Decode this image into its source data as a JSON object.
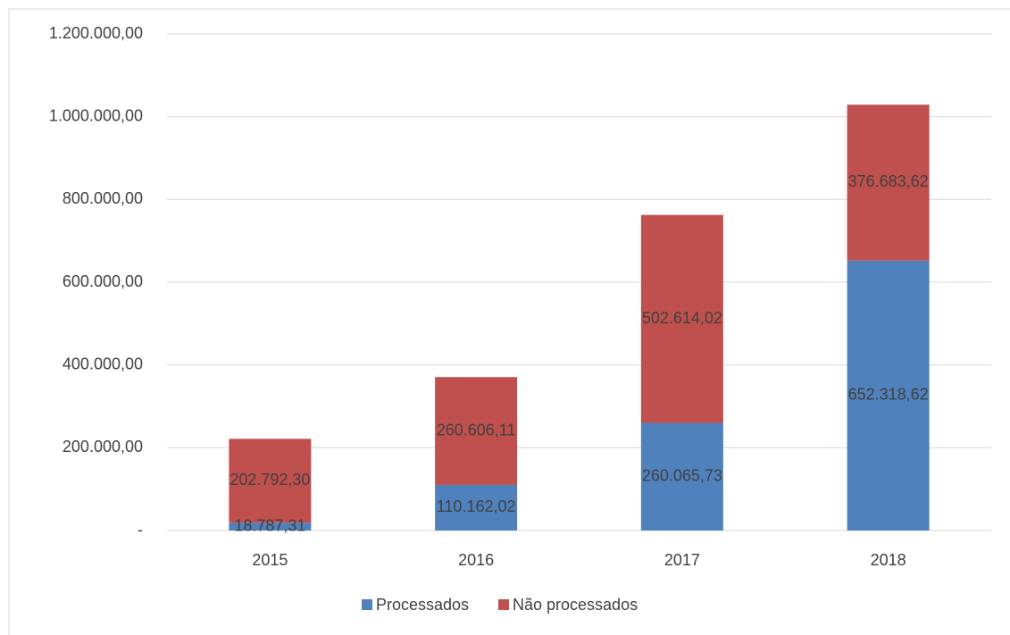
{
  "chart_data": {
    "type": "stacked_bar",
    "categories": [
      "2015",
      "2016",
      "2017",
      "2018"
    ],
    "series": [
      {
        "name": "Processados",
        "color": "#4f81bd",
        "values": [
          18787.31,
          110162.02,
          260065.73,
          652318.62
        ],
        "value_labels": [
          "18.787,31",
          "110.162,02",
          "260.065,73",
          "652.318,62"
        ]
      },
      {
        "name": "Não processados",
        "color": "#c0504d",
        "values": [
          202792.3,
          260606.11,
          502614.02,
          376683.62
        ],
        "value_labels": [
          "202.792,30",
          "260.606,11",
          "502.614,02",
          "376.683,62"
        ]
      }
    ],
    "ylim": [
      0,
      1200000
    ],
    "yticks": [
      {
        "value": 0,
        "label": "-"
      },
      {
        "value": 200000,
        "label": "200.000,00"
      },
      {
        "value": 400000,
        "label": "400.000,00"
      },
      {
        "value": 600000,
        "label": "600.000,00"
      },
      {
        "value": 800000,
        "label": "800.000,00"
      },
      {
        "value": 1000000,
        "label": "1.000.000,00"
      },
      {
        "value": 1200000,
        "label": "1.200.000,00"
      }
    ],
    "grid": true,
    "legend": "bottom"
  }
}
